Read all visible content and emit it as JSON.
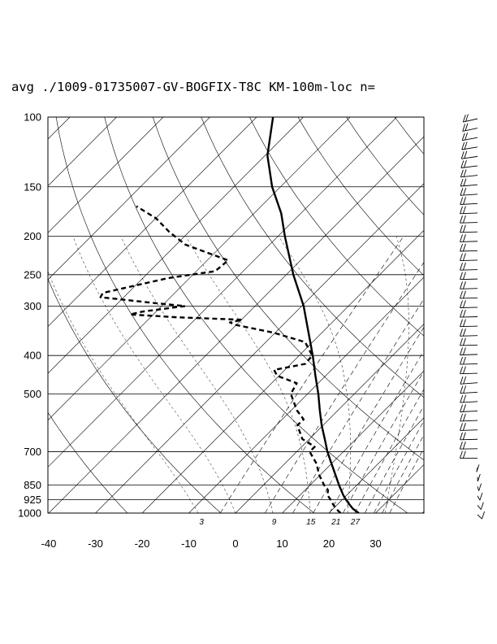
{
  "page": {
    "title": "avg ./1009-01735007-GV-BOGFIX-T8C KM-100m-loc n="
  },
  "chart_data": {
    "type": "skew-t",
    "title": "avg ./1009-01735007-GV-BOGFIX-T8C KM-100m-loc n=",
    "pressure_ticks": [
      "100",
      "150",
      "200",
      "250",
      "300",
      "400",
      "500",
      "700",
      "850",
      "925",
      "1000"
    ],
    "temperature_ticks": [
      "-40",
      "-30",
      "-20",
      "-10",
      "0",
      "10",
      "20",
      "30"
    ],
    "mixing_ratio_labels": [
      "3",
      "9",
      "15",
      "21",
      "27"
    ],
    "xlim": [
      -40,
      40
    ],
    "ylim": [
      1000,
      100
    ],
    "series": [
      {
        "kind": "temperature",
        "style": "solid",
        "points": [
          {
            "p": 1000,
            "t": 26.4
          },
          {
            "p": 975,
            "t": 24.2
          },
          {
            "p": 950,
            "t": 22.5
          },
          {
            "p": 925,
            "t": 20.8
          },
          {
            "p": 900,
            "t": 19.2
          },
          {
            "p": 850,
            "t": 16.2
          },
          {
            "p": 800,
            "t": 13.2
          },
          {
            "p": 750,
            "t": 10.0
          },
          {
            "p": 700,
            "t": 6.6
          },
          {
            "p": 650,
            "t": 3.3
          },
          {
            "p": 600,
            "t": -0.3
          },
          {
            "p": 550,
            "t": -3.9
          },
          {
            "p": 500,
            "t": -7.7
          },
          {
            "p": 450,
            "t": -12.2
          },
          {
            "p": 400,
            "t": -17.1
          },
          {
            "p": 350,
            "t": -22.9
          },
          {
            "p": 300,
            "t": -29.6
          },
          {
            "p": 250,
            "t": -38.5
          },
          {
            "p": 200,
            "t": -48.5
          },
          {
            "p": 175,
            "t": -54.2
          },
          {
            "p": 150,
            "t": -61.8
          },
          {
            "p": 125,
            "t": -69.5
          },
          {
            "p": 100,
            "t": -76.5
          }
        ]
      },
      {
        "kind": "dewpoint",
        "style": "dashed",
        "points": [
          {
            "p": 1000,
            "t": 22.5
          },
          {
            "p": 975,
            "t": 20.6
          },
          {
            "p": 950,
            "t": 19.0
          },
          {
            "p": 925,
            "t": 17.5
          },
          {
            "p": 900,
            "t": 15.8
          },
          {
            "p": 875,
            "t": 14.9
          },
          {
            "p": 850,
            "t": 13.0
          },
          {
            "p": 800,
            "t": 9.7
          },
          {
            "p": 750,
            "t": 6.8
          },
          {
            "p": 700,
            "t": 2.8
          },
          {
            "p": 680,
            "t": 2.8
          },
          {
            "p": 650,
            "t": -1.5
          },
          {
            "p": 600,
            "t": -5.5
          },
          {
            "p": 580,
            "t": -5.4
          },
          {
            "p": 550,
            "t": -8.8
          },
          {
            "p": 500,
            "t": -13.6
          },
          {
            "p": 470,
            "t": -14.6
          },
          {
            "p": 450,
            "t": -20.4
          },
          {
            "p": 435,
            "t": -22.3
          },
          {
            "p": 420,
            "t": -16.9
          },
          {
            "p": 400,
            "t": -17.2
          },
          {
            "p": 370,
            "t": -21.6
          },
          {
            "p": 350,
            "t": -30.5
          },
          {
            "p": 335,
            "t": -40.0
          },
          {
            "p": 330,
            "t": -41.9
          },
          {
            "p": 325,
            "t": -39.8
          },
          {
            "p": 320,
            "t": -55.0
          },
          {
            "p": 315,
            "t": -65.0
          },
          {
            "p": 310,
            "t": -63.0
          },
          {
            "p": 300,
            "t": -55.0
          },
          {
            "p": 295,
            "t": -62.0
          },
          {
            "p": 285,
            "t": -75.0
          },
          {
            "p": 278,
            "t": -75.4
          },
          {
            "p": 255,
            "t": -64.6
          },
          {
            "p": 245,
            "t": -56.0
          },
          {
            "p": 230,
            "t": -55.5
          },
          {
            "p": 210,
            "t": -68.0
          },
          {
            "p": 195,
            "t": -74.2
          },
          {
            "p": 180,
            "t": -80.0
          },
          {
            "p": 168,
            "t": -86.7
          }
        ]
      }
    ],
    "wind_barbs": {
      "levels_hPa": [
        1000,
        100
      ],
      "count": 43
    }
  }
}
